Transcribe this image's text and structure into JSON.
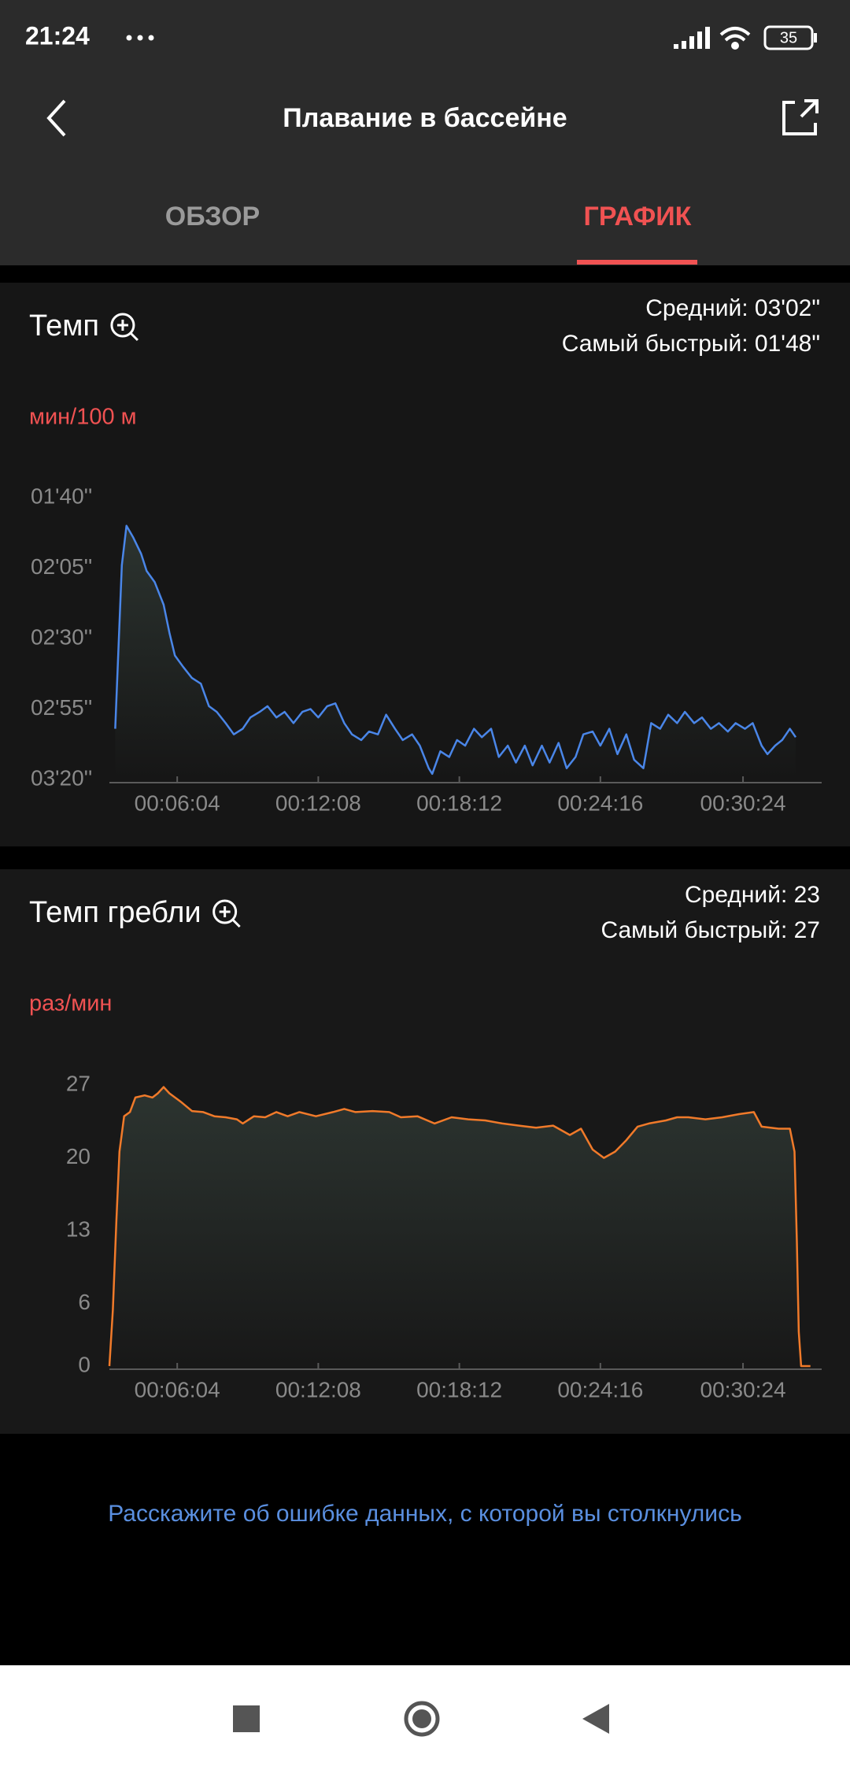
{
  "status_bar": {
    "time": "21:24",
    "battery": "35"
  },
  "header": {
    "title": "Плавание в бассейне"
  },
  "tabs": [
    "ОБЗОР",
    "ГРАФИК"
  ],
  "chart_data": [
    {
      "type": "line",
      "title": "Темп",
      "stats": [
        "Средний: 03'02\"",
        "Самый быстрый: 01'48\""
      ],
      "y_label": "мин/100 м",
      "xlim": [
        189,
        2027
      ],
      "xticks": [
        {
          "value": 364,
          "label": "00:06:04"
        },
        {
          "value": 728,
          "label": "00:12:08"
        },
        {
          "value": 1092,
          "label": "00:18:12"
        },
        {
          "value": 1456,
          "label": "00:24:16"
        },
        {
          "value": 1824,
          "label": "00:30:24"
        }
      ],
      "ylim": [
        200,
        100
      ],
      "yticks": [
        {
          "value": 100,
          "label": "01'40''"
        },
        {
          "value": 125,
          "label": "02'05''"
        },
        {
          "value": 150,
          "label": "02'30''"
        },
        {
          "value": 175,
          "label": "02'55''"
        },
        {
          "value": 200,
          "label": "03'20''"
        }
      ],
      "x": [
        204,
        221,
        233,
        250,
        271,
        285,
        306,
        329,
        344,
        358,
        379,
        402,
        425,
        446,
        466,
        489,
        510,
        533,
        553,
        577,
        597,
        620,
        641,
        664,
        687,
        708,
        728,
        751,
        772,
        795,
        815,
        839,
        859,
        882,
        903,
        926,
        946,
        970,
        990,
        1013,
        1022,
        1043,
        1066,
        1086,
        1107,
        1130,
        1150,
        1174,
        1194,
        1217,
        1238,
        1261,
        1281,
        1305,
        1325,
        1348,
        1369,
        1392,
        1412,
        1436,
        1456,
        1479,
        1500,
        1523,
        1543,
        1567,
        1587,
        1610,
        1631,
        1654,
        1674,
        1698,
        1718,
        1741,
        1762,
        1785,
        1805,
        1829,
        1849,
        1872,
        1887,
        1907,
        1925,
        1945,
        1960
      ],
      "series": [
        {
          "color": "#4a86e8",
          "values": [
            182,
            124,
            110,
            114,
            120,
            126,
            130,
            138,
            148,
            156,
            160,
            164,
            166,
            174,
            176,
            180,
            184,
            182,
            178,
            176,
            174,
            178,
            176,
            180,
            176,
            175,
            178,
            174,
            173,
            180,
            184,
            186,
            183,
            184,
            177,
            182,
            186,
            184,
            188,
            196,
            198,
            190,
            192,
            186,
            188,
            182,
            185,
            182,
            192,
            188,
            194,
            188,
            195,
            188,
            194,
            187,
            196,
            192,
            184,
            183,
            188,
            182,
            191,
            184,
            193,
            196,
            180,
            182,
            177,
            180,
            176,
            180,
            178,
            182,
            180,
            183,
            180,
            182,
            180,
            188,
            191,
            188,
            186,
            182,
            185
          ]
        }
      ]
    },
    {
      "type": "line",
      "title": "Темп гребли",
      "stats": [
        "Средний: 23",
        "Самый быстрый: 27"
      ],
      "y_label": "раз/мин",
      "xlim": [
        189,
        2027
      ],
      "xticks": [
        {
          "value": 364,
          "label": "00:06:04"
        },
        {
          "value": 728,
          "label": "00:12:08"
        },
        {
          "value": 1092,
          "label": "00:18:12"
        },
        {
          "value": 1456,
          "label": "00:24:16"
        },
        {
          "value": 1824,
          "label": "00:30:24"
        }
      ],
      "ylim": [
        0,
        27
      ],
      "yticks": [
        0,
        6,
        13,
        20,
        27
      ],
      "x": [
        189,
        198,
        207,
        215,
        227,
        242,
        256,
        280,
        300,
        314,
        329,
        344,
        373,
        402,
        431,
        460,
        489,
        518,
        533,
        562,
        591,
        620,
        649,
        679,
        722,
        766,
        795,
        824,
        868,
        911,
        941,
        984,
        1028,
        1072,
        1115,
        1159,
        1203,
        1246,
        1290,
        1334,
        1377,
        1406,
        1436,
        1465,
        1494,
        1523,
        1552,
        1581,
        1625,
        1654,
        1683,
        1727,
        1770,
        1814,
        1852,
        1872,
        1916,
        1945,
        1957,
        1963,
        1968,
        1974,
        1998
      ],
      "series": [
        {
          "color": "#f07a2a",
          "values": [
            0,
            5.4,
            14,
            20.6,
            24,
            24.4,
            25.8,
            26,
            25.8,
            26.2,
            26.8,
            26.2,
            25.4,
            24.5,
            24.4,
            24,
            23.9,
            23.7,
            23.3,
            24,
            23.9,
            24.4,
            24,
            24.4,
            24,
            24.4,
            24.7,
            24.4,
            24.5,
            24.4,
            23.9,
            24,
            23.3,
            23.9,
            23.7,
            23.6,
            23.3,
            23.1,
            22.9,
            23.1,
            22.2,
            22.8,
            20.8,
            20,
            20.6,
            21.7,
            23,
            23.3,
            23.6,
            23.9,
            23.9,
            23.7,
            23.9,
            24.2,
            24.4,
            23,
            22.8,
            22.8,
            20.6,
            11.9,
            3.3,
            0,
            0
          ]
        }
      ]
    }
  ],
  "footer_link": "Расскажите об ошибке данных, с которой вы столкнулись"
}
